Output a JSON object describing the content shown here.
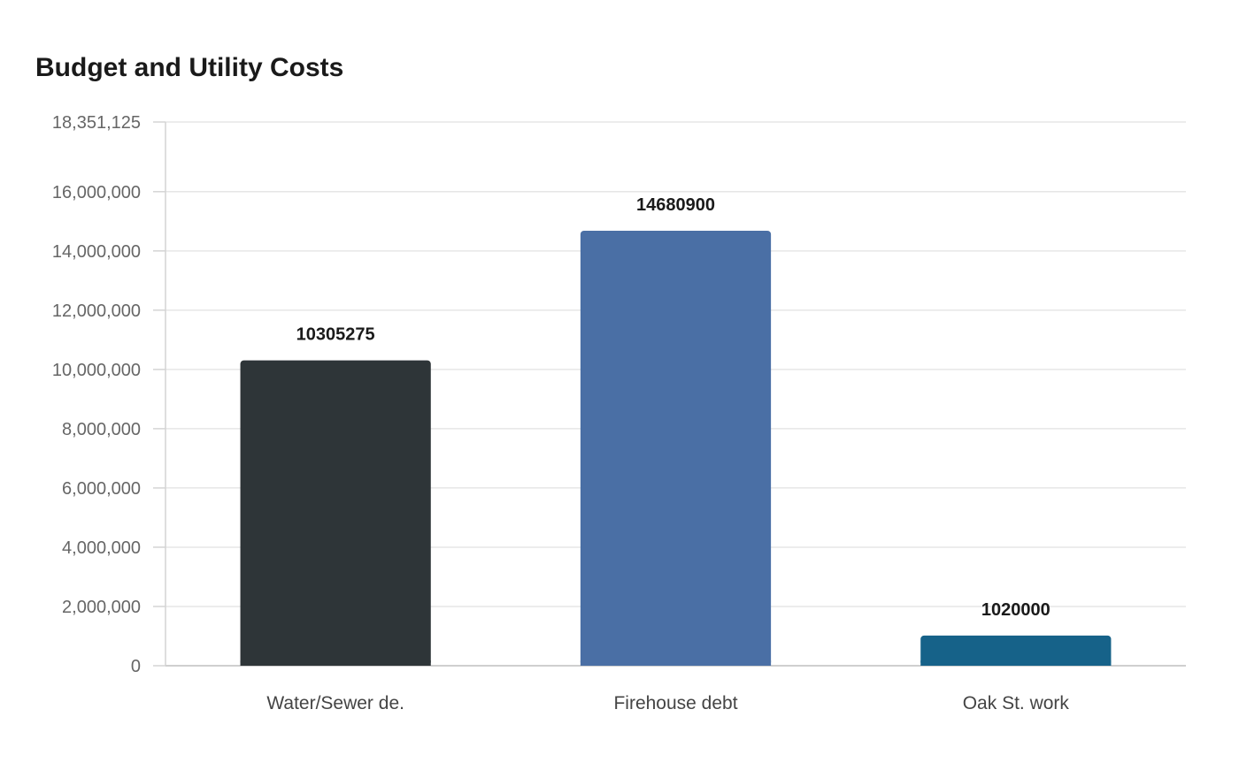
{
  "chart_data": {
    "type": "bar",
    "title": "Budget and Utility Costs",
    "xlabel": "",
    "ylabel": "",
    "categories": [
      "Water/Sewer de.",
      "Firehouse debt",
      "Oak St. work"
    ],
    "values": [
      10305275,
      14680900,
      1020000
    ],
    "data_labels": [
      "10305275",
      "14680900",
      "1020000"
    ],
    "colors": [
      "#2e3538",
      "#4a6fa5",
      "#166289"
    ],
    "ylim": [
      0,
      18351125
    ],
    "y_ticks": [
      0,
      2000000,
      4000000,
      6000000,
      8000000,
      10000000,
      12000000,
      14000000,
      16000000,
      18351125
    ],
    "y_tick_labels": [
      "0",
      "2,000,000",
      "4,000,000",
      "6,000,000",
      "8,000,000",
      "10,000,000",
      "12,000,000",
      "14,000,000",
      "16,000,000",
      "18,351,125"
    ],
    "grid": true,
    "legend": "none"
  }
}
